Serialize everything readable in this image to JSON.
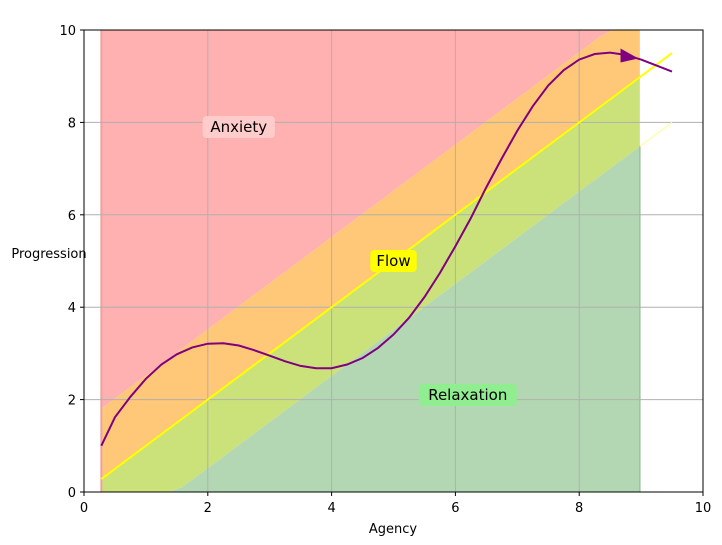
{
  "chart_data": {
    "type": "area",
    "title": "",
    "xlabel": "Agency",
    "ylabel": "Progression",
    "xlim": [
      0,
      10
    ],
    "ylim": [
      0,
      10
    ],
    "xticks": [
      "0",
      "2",
      "4",
      "6",
      "8",
      "10"
    ],
    "yticks": [
      "0",
      "2",
      "4",
      "6",
      "8",
      "10"
    ],
    "grid": true,
    "regions": [
      {
        "label": "Anxiety",
        "color": "#ffb0b0"
      },
      {
        "label": "Flow",
        "color": "#ffc878"
      },
      {
        "label": "Relaxation",
        "color": "#b3d7b3"
      }
    ],
    "band_x_range": [
      0.28,
      8.98
    ],
    "boundaries": {
      "anxiety_lower": {
        "x": [
          0.28,
          8.98
        ],
        "y": [
          1.8,
          10.5
        ]
      },
      "flow_line": {
        "x": [
          0.28,
          9.5
        ],
        "y": [
          0.28,
          9.5
        ]
      },
      "boredom_lower": {
        "x": [
          0.28,
          9.5
        ],
        "y": [
          -1.2,
          8.0
        ]
      }
    },
    "annotations": [
      {
        "text": "Anxiety",
        "x": 2.5,
        "y": 7.9,
        "bg": "#ffcccc"
      },
      {
        "text": "Flow",
        "x": 5.0,
        "y": 5.0,
        "bg": "#ffff00"
      },
      {
        "text": "Relaxation",
        "x": 6.2,
        "y": 2.1,
        "bg": "#90ee90"
      }
    ],
    "trajectory": {
      "color": "#800080",
      "x": [
        0.28,
        0.5,
        0.75,
        1.0,
        1.25,
        1.5,
        1.75,
        2.0,
        2.25,
        2.5,
        2.75,
        3.0,
        3.25,
        3.5,
        3.75,
        4.0,
        4.25,
        4.5,
        4.75,
        5.0,
        5.25,
        5.5,
        5.75,
        6.0,
        6.25,
        6.5,
        6.75,
        7.0,
        7.25,
        7.5,
        7.75,
        8.0,
        8.25,
        8.5,
        8.75,
        9.0,
        9.25,
        9.5
      ],
      "y": [
        1.0,
        1.62,
        2.06,
        2.45,
        2.76,
        2.98,
        3.13,
        3.21,
        3.22,
        3.17,
        3.07,
        2.95,
        2.83,
        2.73,
        2.68,
        2.68,
        2.76,
        2.9,
        3.12,
        3.41,
        3.77,
        4.22,
        4.74,
        5.32,
        5.93,
        6.6,
        7.22,
        7.82,
        8.35,
        8.8,
        9.13,
        9.36,
        9.48,
        9.51,
        9.46,
        9.36,
        9.23,
        9.1
      ]
    }
  }
}
